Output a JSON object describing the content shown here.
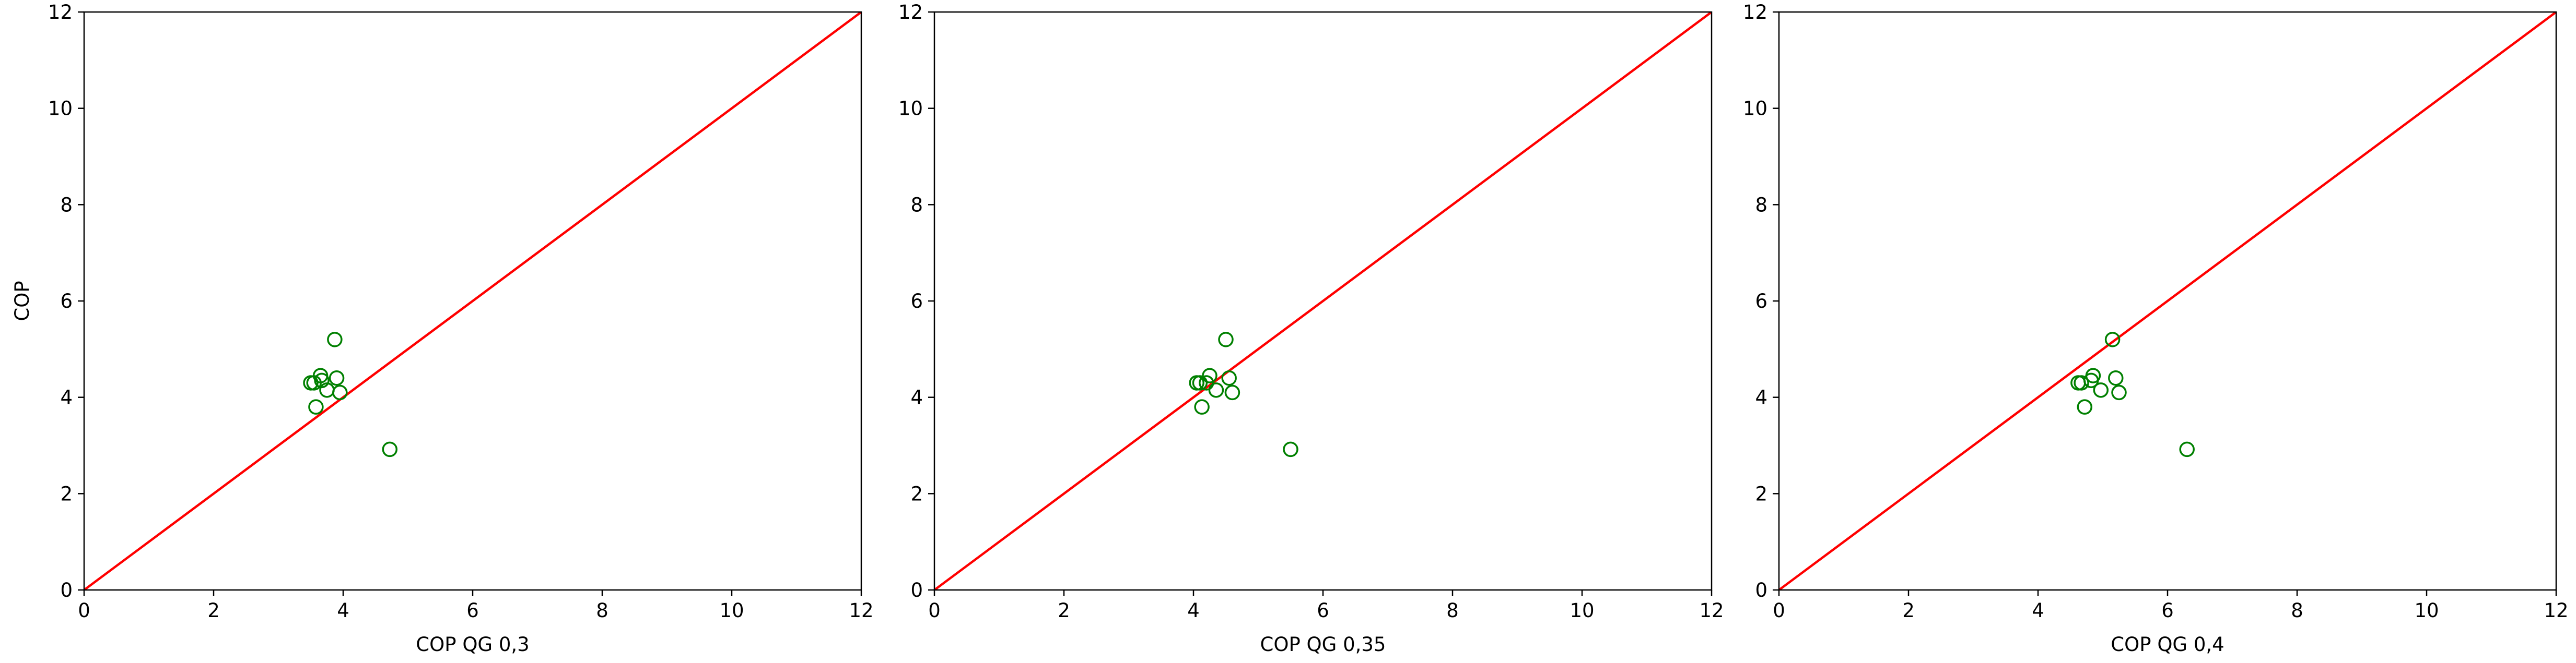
{
  "chart_data": [
    {
      "type": "scatter",
      "title": "",
      "xlabel": "COP QG 0,3",
      "ylabel": "COP",
      "xlim": [
        0,
        12
      ],
      "ylim": [
        0,
        12
      ],
      "xticks": [
        "0",
        "2",
        "4",
        "6",
        "8",
        "10",
        "12"
      ],
      "yticks": [
        "0",
        "2",
        "4",
        "6",
        "8",
        "10",
        "12"
      ],
      "grid": false,
      "series": [
        {
          "marker": "hollow-circle",
          "color": "#008000",
          "points": [
            [
              3.5,
              4.3
            ],
            [
              3.55,
              4.3
            ],
            [
              3.58,
              3.8
            ],
            [
              3.65,
              4.45
            ],
            [
              3.67,
              4.35
            ],
            [
              3.75,
              4.15
            ],
            [
              3.87,
              5.2
            ],
            [
              3.9,
              4.4
            ],
            [
              3.95,
              4.1
            ],
            [
              4.72,
              2.92
            ]
          ]
        }
      ],
      "reference_line": {
        "from": [
          0,
          0
        ],
        "to": [
          12,
          12
        ],
        "color": "#ff0000"
      }
    },
    {
      "type": "scatter",
      "title": "",
      "xlabel": "COP QG 0,35",
      "ylabel": "",
      "xlim": [
        0,
        12
      ],
      "ylim": [
        0,
        12
      ],
      "xticks": [
        "0",
        "2",
        "4",
        "6",
        "8",
        "10",
        "12"
      ],
      "yticks": [
        "0",
        "2",
        "4",
        "6",
        "8",
        "10",
        "12"
      ],
      "grid": false,
      "series": [
        {
          "marker": "hollow-circle",
          "color": "#008000",
          "points": [
            [
              4.05,
              4.3
            ],
            [
              4.1,
              4.3
            ],
            [
              4.13,
              3.8
            ],
            [
              4.2,
              4.3
            ],
            [
              4.25,
              4.45
            ],
            [
              4.35,
              4.15
            ],
            [
              4.5,
              5.2
            ],
            [
              4.55,
              4.4
            ],
            [
              4.6,
              4.1
            ],
            [
              5.5,
              2.92
            ]
          ]
        }
      ],
      "reference_line": {
        "from": [
          0,
          0
        ],
        "to": [
          12,
          12
        ],
        "color": "#ff0000"
      }
    },
    {
      "type": "scatter",
      "title": "",
      "xlabel": "COP QG 0,4",
      "ylabel": "",
      "xlim": [
        0,
        12
      ],
      "ylim": [
        0,
        12
      ],
      "xticks": [
        "0",
        "2",
        "4",
        "6",
        "8",
        "10",
        "12"
      ],
      "yticks": [
        "0",
        "2",
        "4",
        "6",
        "8",
        "10",
        "12"
      ],
      "grid": false,
      "series": [
        {
          "marker": "hollow-circle",
          "color": "#008000",
          "points": [
            [
              4.62,
              4.3
            ],
            [
              4.67,
              4.3
            ],
            [
              4.72,
              3.8
            ],
            [
              4.82,
              4.35
            ],
            [
              4.85,
              4.45
            ],
            [
              4.97,
              4.15
            ],
            [
              5.15,
              5.2
            ],
            [
              5.2,
              4.4
            ],
            [
              5.25,
              4.1
            ],
            [
              6.3,
              2.92
            ]
          ]
        }
      ],
      "reference_line": {
        "from": [
          0,
          0
        ],
        "to": [
          12,
          12
        ],
        "color": "#ff0000"
      }
    }
  ]
}
